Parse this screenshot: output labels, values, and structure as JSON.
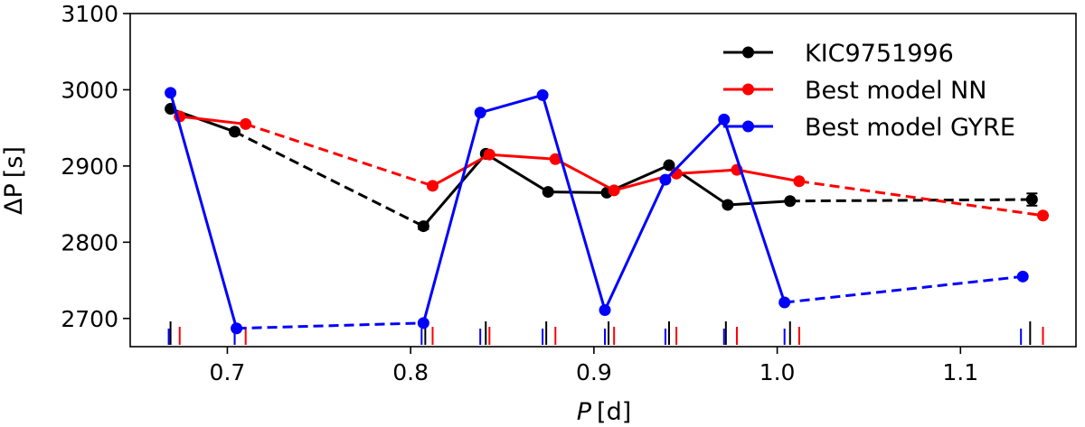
{
  "chart_data": {
    "type": "line",
    "xlabel_main": "P",
    "xlabel_unit": "[d]",
    "ylabel_main": "ΔP",
    "ylabel_unit": "[s]",
    "xlim": [
      0.647,
      1.163
    ],
    "ylim": [
      2663,
      3100
    ],
    "xticks": [
      0.7,
      0.8,
      0.9,
      1.0,
      1.1
    ],
    "xtick_labels": [
      "0.7",
      "0.8",
      "0.9",
      "1.0",
      "1.1"
    ],
    "yticks": [
      2700,
      2800,
      2900,
      3000,
      3100
    ],
    "ytick_labels": [
      "2700",
      "2800",
      "2900",
      "3000",
      "3100"
    ],
    "legend_position": "top-right",
    "series": [
      {
        "name": "KIC9751996",
        "color": "#000000",
        "x": [
          0.669,
          0.704,
          0.807,
          0.841,
          0.875,
          0.907,
          0.941,
          0.973,
          1.007,
          1.139
        ],
        "y": [
          2975,
          2945,
          2821,
          2916,
          2866,
          2865,
          2901,
          2849,
          2854,
          2856
        ],
        "yerr": [
          0,
          0,
          4,
          0,
          0,
          0,
          0,
          0,
          0,
          8
        ],
        "dashed_segments": [
          1,
          8
        ],
        "period_markers": [
          0.669,
          0.704,
          0.808,
          0.841,
          0.874,
          0.908,
          0.941,
          0.972,
          1.007,
          1.138
        ]
      },
      {
        "name": "Best model NN",
        "color": "#ff0000",
        "x": [
          0.674,
          0.71,
          0.812,
          0.843,
          0.879,
          0.911,
          0.945,
          0.978,
          1.012,
          1.145
        ],
        "y": [
          2965,
          2955,
          2874,
          2915,
          2909,
          2868,
          2890,
          2895,
          2880,
          2835
        ],
        "yerr": [
          0,
          0,
          0,
          0,
          0,
          0,
          0,
          0,
          0,
          0
        ],
        "dashed_segments": [
          1,
          8
        ],
        "period_markers": [
          0.674,
          0.71,
          0.812,
          0.843,
          0.879,
          0.911,
          0.945,
          0.978,
          1.012,
          1.145
        ]
      },
      {
        "name": "Best model GYRE",
        "color": "#0000ff",
        "x": [
          0.669,
          0.705,
          0.807,
          0.838,
          0.872,
          0.906,
          0.939,
          0.971,
          1.004,
          1.134
        ],
        "y": [
          2996,
          2687,
          2694,
          2970,
          2993,
          2711,
          2882,
          2961,
          2721,
          2755
        ],
        "yerr": [
          0,
          0,
          0,
          0,
          0,
          0,
          0,
          0,
          0,
          0
        ],
        "dashed_segments": [
          1,
          8
        ],
        "period_markers": [
          0.668,
          0.704,
          0.806,
          0.838,
          0.872,
          0.906,
          0.939,
          0.971,
          1.004,
          1.133
        ]
      }
    ]
  }
}
